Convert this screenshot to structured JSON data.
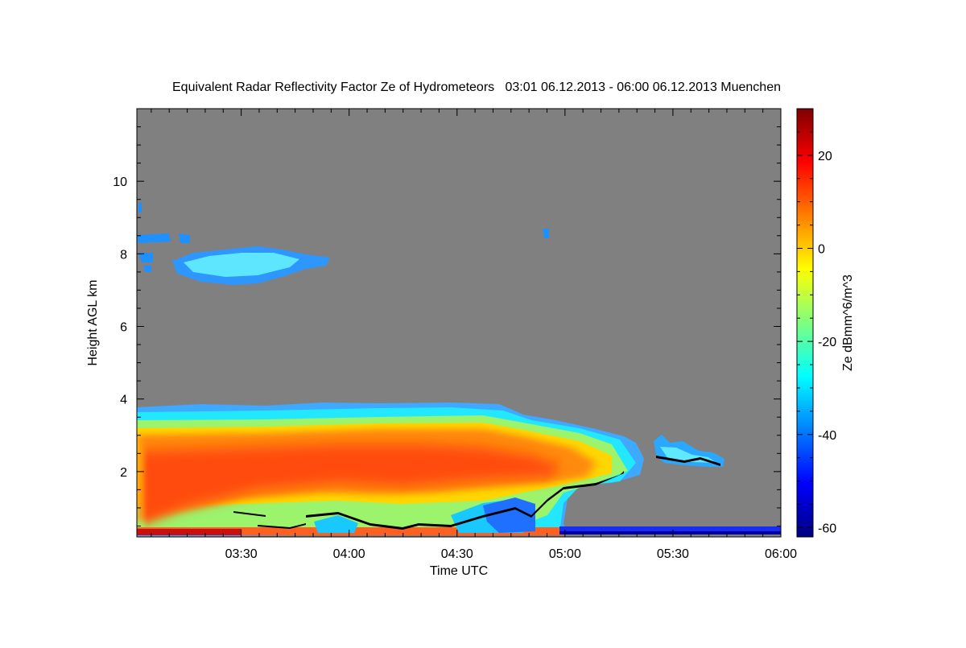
{
  "chart_data": {
    "type": "heatmap",
    "title": "Equivalent Radar Reflectivity Factor Ze of Hydrometeors   03:01 06.12.2013 - 06:00 06.12.2013 Muenchen",
    "xlabel": "Time UTC",
    "ylabel": "Height AGL km",
    "colorbar_label": "Ze dBmm^6/m^3",
    "xlim": [
      "03:01",
      "06:00"
    ],
    "ylim": [
      0.2,
      12.0
    ],
    "x_ticks": [
      "03:30",
      "04:00",
      "04:30",
      "05:00",
      "05:30",
      "06:00"
    ],
    "y_ticks": [
      2,
      4,
      6,
      8,
      10
    ],
    "colorbar_range": [
      -62,
      30
    ],
    "colorbar_ticks": [
      20,
      0,
      -20,
      -40,
      -60
    ],
    "colormap": [
      "#00007f",
      "#0000ff",
      "#007fff",
      "#00ffff",
      "#7fff7f",
      "#ffff00",
      "#ff7f00",
      "#ff0000",
      "#7f0000"
    ],
    "no_data_color": "#808080",
    "grid": false
  }
}
